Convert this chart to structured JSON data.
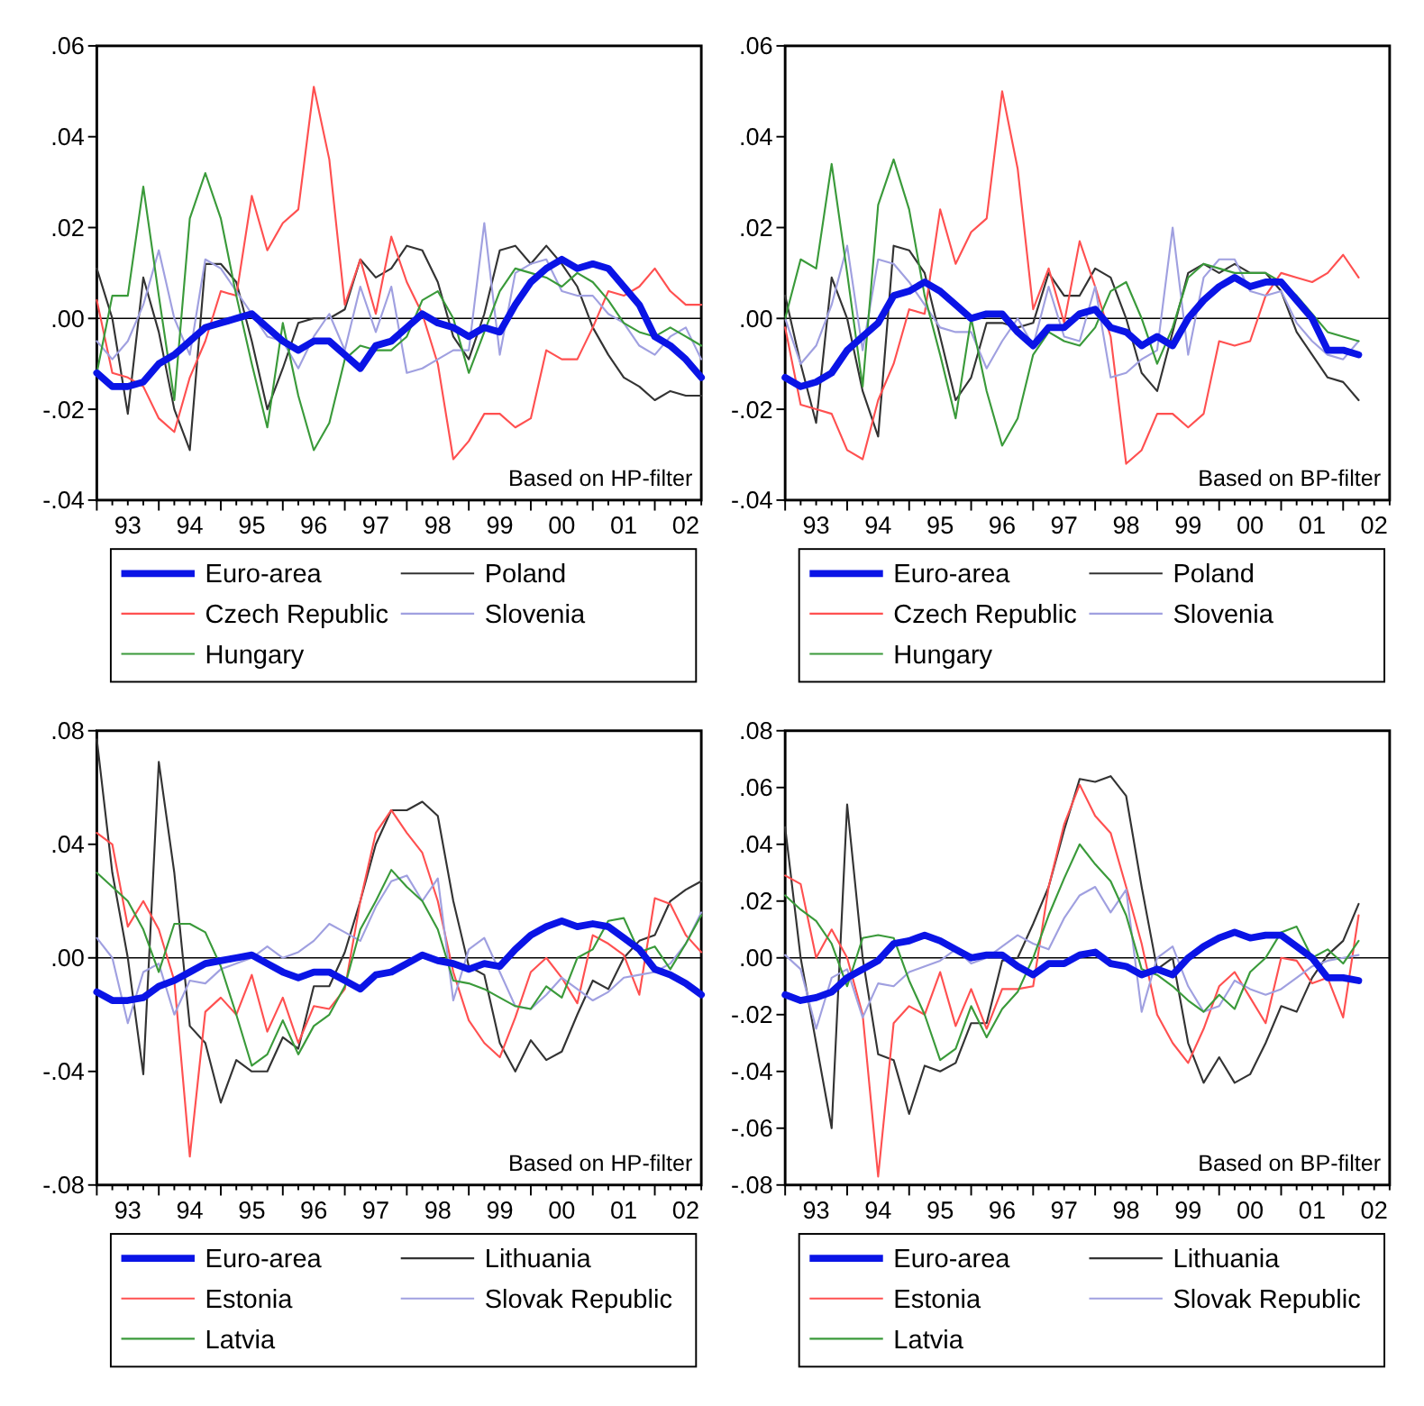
{
  "chart_data": [
    {
      "type": "line",
      "annotations": [
        "Based on HP-filter"
      ],
      "legend": "bottom",
      "categories": [
        null,
        null,
        "93",
        null,
        null,
        null,
        "94",
        null,
        null,
        null,
        "95",
        null,
        null,
        null,
        "96",
        null,
        null,
        null,
        "97",
        null,
        null,
        null,
        "98",
        null,
        null,
        null,
        "99",
        null,
        null,
        null,
        "00",
        null,
        null,
        null,
        "01",
        null,
        null,
        null,
        "02",
        null
      ],
      "ylim": [
        -0.04,
        0.06
      ],
      "yticks": [
        {
          "value": -0.04,
          "label": "-.04"
        },
        {
          "value": -0.02,
          "label": "-.02"
        },
        {
          "value": 0,
          "label": ".00"
        },
        {
          "value": 0.02,
          "label": ".02"
        },
        {
          "value": 0.04,
          "label": ".04"
        },
        {
          "value": 0.06,
          "label": ".06"
        }
      ],
      "ref_lines": [
        {
          "axis": "y",
          "value": 0,
          "color": "#000000"
        }
      ],
      "series": [
        {
          "name": "Euro-area",
          "color": "#0a14e6",
          "values": [
            -0.012,
            -0.015,
            -0.015,
            -0.014,
            -0.01,
            -0.008,
            -0.005,
            -0.002,
            -0.001,
            0.0,
            0.001,
            -0.002,
            -0.005,
            -0.007,
            -0.005,
            -0.005,
            -0.008,
            -0.011,
            -0.006,
            -0.005,
            -0.002,
            0.001,
            -0.001,
            -0.002,
            -0.004,
            -0.002,
            -0.003,
            0.003,
            0.008,
            0.011,
            0.013,
            0.011,
            0.012,
            0.011,
            0.007,
            0.003,
            -0.004,
            -0.006,
            -0.009,
            -0.013
          ]
        },
        {
          "name": "Poland",
          "color": "#333333",
          "values": [
            0.011,
            0.0,
            -0.021,
            0.009,
            -0.003,
            -0.02,
            -0.029,
            0.012,
            0.012,
            0.008,
            -0.005,
            -0.02,
            -0.011,
            -0.001,
            0.0,
            0.0,
            0.002,
            0.013,
            0.009,
            0.011,
            0.016,
            0.015,
            0.008,
            -0.004,
            -0.009,
            0.001,
            0.015,
            0.016,
            0.012,
            0.016,
            0.012,
            0.007,
            -0.002,
            -0.008,
            -0.013,
            -0.015,
            -0.018,
            -0.016,
            -0.017,
            -0.017
          ]
        },
        {
          "name": "Czech Republic",
          "color": "#ff5050",
          "values": [
            0.004,
            -0.012,
            -0.013,
            -0.015,
            -0.022,
            -0.025,
            -0.013,
            -0.005,
            0.006,
            0.005,
            0.027,
            0.015,
            0.021,
            0.024,
            0.051,
            0.035,
            0.003,
            0.013,
            0.001,
            0.018,
            0.008,
            0.001,
            -0.01,
            -0.031,
            -0.027,
            -0.021,
            -0.021,
            -0.024,
            -0.022,
            -0.007,
            -0.009,
            -0.009,
            -0.002,
            0.006,
            0.005,
            0.007,
            0.011,
            0.006,
            0.003,
            0.003
          ]
        },
        {
          "name": "Slovenia",
          "color": "#a0a0e0",
          "values": [
            -0.005,
            -0.009,
            -0.005,
            0.003,
            0.015,
            0.0,
            -0.008,
            0.013,
            0.011,
            0.006,
            0.001,
            -0.004,
            -0.005,
            -0.011,
            -0.004,
            0.001,
            -0.007,
            0.007,
            -0.003,
            0.007,
            -0.012,
            -0.011,
            -0.009,
            -0.007,
            -0.007,
            0.021,
            -0.008,
            0.01,
            0.012,
            0.013,
            0.006,
            0.005,
            0.005,
            0.001,
            -0.001,
            -0.006,
            -0.008,
            -0.004,
            -0.002,
            -0.009
          ]
        },
        {
          "name": "Hungary",
          "color": "#3a9a3a",
          "values": [
            -0.012,
            0.005,
            0.005,
            0.029,
            0.005,
            -0.018,
            0.022,
            0.032,
            0.022,
            0.005,
            -0.01,
            -0.024,
            -0.001,
            -0.017,
            -0.029,
            -0.023,
            -0.009,
            -0.006,
            -0.007,
            -0.007,
            -0.004,
            0.004,
            0.006,
            0.0,
            -0.012,
            -0.003,
            0.006,
            0.011,
            0.01,
            0.009,
            0.007,
            0.01,
            0.008,
            0.004,
            -0.001,
            -0.003,
            -0.004,
            -0.002,
            -0.004,
            -0.006
          ]
        }
      ]
    },
    {
      "type": "line",
      "annotations": [
        "Based on BP-filter"
      ],
      "legend": "bottom",
      "categories": [
        null,
        null,
        "93",
        null,
        null,
        null,
        "94",
        null,
        null,
        null,
        "95",
        null,
        null,
        null,
        "96",
        null,
        null,
        null,
        "97",
        null,
        null,
        null,
        "98",
        null,
        null,
        null,
        "99",
        null,
        null,
        null,
        "00",
        null,
        null,
        null,
        "01",
        null,
        null,
        null,
        "02",
        null
      ],
      "ylim": [
        -0.04,
        0.06
      ],
      "yticks": [
        {
          "value": -0.04,
          "label": "-.04"
        },
        {
          "value": -0.02,
          "label": "-.02"
        },
        {
          "value": 0,
          "label": ".00"
        },
        {
          "value": 0.02,
          "label": ".02"
        },
        {
          "value": 0.04,
          "label": ".04"
        },
        {
          "value": 0.06,
          "label": ".06"
        }
      ],
      "ref_lines": [
        {
          "axis": "y",
          "value": 0,
          "color": "#000000"
        }
      ],
      "series": [
        {
          "name": "Euro-area",
          "color": "#0a14e6",
          "values": [
            -0.013,
            -0.015,
            -0.014,
            -0.012,
            -0.007,
            -0.004,
            -0.001,
            0.005,
            0.006,
            0.008,
            0.006,
            0.003,
            0.0,
            0.001,
            0.001,
            -0.003,
            -0.006,
            -0.002,
            -0.002,
            0.001,
            0.002,
            -0.002,
            -0.003,
            -0.006,
            -0.004,
            -0.006,
            0.0,
            0.004,
            0.007,
            0.009,
            0.007,
            0.008,
            0.008,
            0.004,
            0.0,
            -0.007,
            -0.007,
            -0.008,
            null,
            null
          ]
        },
        {
          "name": "Poland",
          "color": "#333333",
          "values": [
            0.005,
            -0.01,
            -0.023,
            0.009,
            0.0,
            -0.016,
            -0.026,
            0.016,
            0.015,
            0.01,
            -0.004,
            -0.018,
            -0.013,
            -0.001,
            -0.001,
            -0.002,
            -0.001,
            0.01,
            0.005,
            0.005,
            0.011,
            0.009,
            0.0,
            -0.012,
            -0.016,
            -0.003,
            0.01,
            0.012,
            0.01,
            0.012,
            0.01,
            0.01,
            0.006,
            -0.003,
            -0.008,
            -0.013,
            -0.014,
            -0.018,
            null,
            null
          ]
        },
        {
          "name": "Czech Republic",
          "color": "#ff5050",
          "values": [
            -0.002,
            -0.019,
            -0.02,
            -0.021,
            -0.029,
            -0.031,
            -0.018,
            -0.01,
            0.002,
            0.001,
            0.024,
            0.012,
            0.019,
            0.022,
            0.05,
            0.033,
            0.002,
            0.011,
            -0.001,
            0.017,
            0.007,
            -0.004,
            -0.032,
            -0.029,
            -0.021,
            -0.021,
            -0.024,
            -0.021,
            -0.005,
            -0.006,
            -0.005,
            0.005,
            0.01,
            0.009,
            0.008,
            0.01,
            0.014,
            0.009,
            null,
            null
          ]
        },
        {
          "name": "Slovenia",
          "color": "#a0a0e0",
          "values": [
            0.0,
            -0.01,
            -0.006,
            0.003,
            0.016,
            -0.007,
            0.013,
            0.012,
            0.008,
            0.003,
            -0.002,
            -0.003,
            -0.003,
            -0.011,
            -0.005,
            0.0,
            -0.006,
            0.007,
            -0.004,
            -0.005,
            0.007,
            -0.013,
            -0.012,
            -0.009,
            -0.007,
            0.02,
            -0.008,
            0.009,
            0.013,
            0.013,
            0.006,
            0.005,
            0.006,
            -0.001,
            -0.005,
            -0.008,
            -0.009,
            -0.005,
            null,
            null
          ]
        },
        {
          "name": "Hungary",
          "color": "#3a9a3a",
          "values": [
            0.0,
            0.013,
            0.011,
            0.034,
            0.01,
            -0.015,
            0.025,
            0.035,
            0.024,
            0.005,
            -0.008,
            -0.022,
            0.0,
            -0.016,
            -0.028,
            -0.022,
            -0.008,
            -0.003,
            -0.005,
            -0.006,
            -0.002,
            0.006,
            0.008,
            0.0,
            -0.01,
            -0.002,
            0.009,
            0.012,
            0.011,
            0.01,
            0.01,
            0.01,
            0.008,
            0.005,
            0.001,
            -0.003,
            -0.004,
            -0.005,
            null,
            null
          ]
        }
      ]
    },
    {
      "type": "line",
      "annotations": [
        "Based on HP-filter"
      ],
      "legend": "bottom",
      "categories": [
        null,
        null,
        "93",
        null,
        null,
        null,
        "94",
        null,
        null,
        null,
        "95",
        null,
        null,
        null,
        "96",
        null,
        null,
        null,
        "97",
        null,
        null,
        null,
        "98",
        null,
        null,
        null,
        "99",
        null,
        null,
        null,
        "00",
        null,
        null,
        null,
        "01",
        null,
        null,
        null,
        "02",
        null
      ],
      "ylim": [
        -0.08,
        0.08
      ],
      "yticks": [
        {
          "value": -0.08,
          "label": "-.08"
        },
        {
          "value": -0.04,
          "label": "-.04"
        },
        {
          "value": 0,
          "label": ".00"
        },
        {
          "value": 0.04,
          "label": ".04"
        },
        {
          "value": 0.08,
          "label": ".08"
        }
      ],
      "ref_lines": [
        {
          "axis": "y",
          "value": 0,
          "color": "#000000"
        }
      ],
      "series": [
        {
          "name": "Euro-area",
          "color": "#0a14e6",
          "values": [
            -0.012,
            -0.015,
            -0.015,
            -0.014,
            -0.01,
            -0.008,
            -0.005,
            -0.002,
            -0.001,
            0.0,
            0.001,
            -0.002,
            -0.005,
            -0.007,
            -0.005,
            -0.005,
            -0.008,
            -0.011,
            -0.006,
            -0.005,
            -0.002,
            0.001,
            -0.001,
            -0.002,
            -0.004,
            -0.002,
            -0.003,
            0.003,
            0.008,
            0.011,
            0.013,
            0.011,
            0.012,
            0.011,
            0.007,
            0.003,
            -0.004,
            -0.006,
            -0.009,
            -0.013
          ]
        },
        {
          "name": "Lithuania",
          "color": "#333333",
          "values": [
            0.077,
            0.03,
            0.0,
            -0.041,
            0.069,
            0.03,
            -0.024,
            -0.03,
            -0.051,
            -0.036,
            -0.04,
            -0.04,
            -0.028,
            -0.032,
            -0.01,
            -0.01,
            0.002,
            0.02,
            0.04,
            0.052,
            0.052,
            0.055,
            0.05,
            0.02,
            -0.003,
            -0.006,
            -0.03,
            -0.04,
            -0.029,
            -0.036,
            -0.033,
            -0.02,
            -0.008,
            -0.011,
            0.0,
            0.006,
            0.008,
            0.02,
            0.024,
            0.027
          ]
        },
        {
          "name": "Estonia",
          "color": "#ff5050",
          "values": [
            0.044,
            0.04,
            0.011,
            0.02,
            0.01,
            -0.008,
            -0.07,
            -0.019,
            -0.014,
            -0.02,
            -0.006,
            -0.026,
            -0.014,
            -0.03,
            -0.017,
            -0.018,
            -0.011,
            0.02,
            0.044,
            0.052,
            0.044,
            0.037,
            0.02,
            -0.005,
            -0.022,
            -0.03,
            -0.035,
            -0.021,
            -0.005,
            0.0,
            -0.007,
            -0.016,
            0.008,
            0.005,
            0.001,
            -0.013,
            0.021,
            0.019,
            0.008,
            0.002
          ]
        },
        {
          "name": "Slovak Republic",
          "color": "#a0a0e0",
          "values": [
            0.007,
            0.0,
            -0.023,
            -0.005,
            -0.002,
            -0.02,
            -0.008,
            -0.009,
            -0.004,
            -0.002,
            0.0,
            0.004,
            0.0,
            0.002,
            0.006,
            0.012,
            0.009,
            0.006,
            0.018,
            0.027,
            0.029,
            0.02,
            0.028,
            -0.015,
            0.003,
            0.007,
            -0.005,
            -0.017,
            -0.018,
            -0.013,
            -0.007,
            -0.011,
            -0.015,
            -0.012,
            -0.007,
            -0.006,
            -0.005,
            -0.002,
            0.005,
            0.016
          ]
        },
        {
          "name": "Latvia",
          "color": "#3a9a3a",
          "values": [
            0.03,
            0.025,
            0.02,
            0.01,
            -0.005,
            0.012,
            0.012,
            0.009,
            -0.003,
            -0.02,
            -0.038,
            -0.034,
            -0.022,
            -0.034,
            -0.024,
            -0.02,
            -0.01,
            0.01,
            0.02,
            0.031,
            0.025,
            0.02,
            0.01,
            -0.008,
            -0.009,
            -0.011,
            -0.014,
            -0.017,
            -0.018,
            -0.01,
            -0.014,
            0.0,
            0.003,
            0.013,
            0.014,
            0.002,
            0.004,
            -0.004,
            0.005,
            0.015
          ]
        }
      ]
    },
    {
      "type": "line",
      "annotations": [
        "Based on BP-filter"
      ],
      "legend": "bottom",
      "categories": [
        null,
        null,
        "93",
        null,
        null,
        null,
        "94",
        null,
        null,
        null,
        "95",
        null,
        null,
        null,
        "96",
        null,
        null,
        null,
        "97",
        null,
        null,
        null,
        "98",
        null,
        null,
        null,
        "99",
        null,
        null,
        null,
        "00",
        null,
        null,
        null,
        "01",
        null,
        null,
        null,
        "02",
        null
      ],
      "ylim": [
        -0.08,
        0.08
      ],
      "yticks": [
        {
          "value": -0.08,
          "label": "-.08"
        },
        {
          "value": -0.06,
          "label": "-.06"
        },
        {
          "value": -0.04,
          "label": "-.04"
        },
        {
          "value": -0.02,
          "label": "-.02"
        },
        {
          "value": 0,
          "label": ".00"
        },
        {
          "value": 0.02,
          "label": ".02"
        },
        {
          "value": 0.04,
          "label": ".04"
        },
        {
          "value": 0.06,
          "label": ".06"
        },
        {
          "value": 0.08,
          "label": ".08"
        }
      ],
      "ref_lines": [
        {
          "axis": "y",
          "value": 0,
          "color": "#000000"
        }
      ],
      "series": [
        {
          "name": "Euro-area",
          "color": "#0a14e6",
          "values": [
            -0.013,
            -0.015,
            -0.014,
            -0.012,
            -0.007,
            -0.004,
            -0.001,
            0.005,
            0.006,
            0.008,
            0.006,
            0.003,
            0.0,
            0.001,
            0.001,
            -0.003,
            -0.006,
            -0.002,
            -0.002,
            0.001,
            0.002,
            -0.002,
            -0.003,
            -0.006,
            -0.004,
            -0.006,
            0.0,
            0.004,
            0.007,
            0.009,
            0.007,
            0.008,
            0.008,
            0.004,
            0.0,
            -0.007,
            -0.007,
            -0.008,
            null,
            null
          ]
        },
        {
          "name": "Lithuania",
          "color": "#333333",
          "values": [
            0.046,
            0.0,
            -0.03,
            -0.06,
            0.054,
            0.0,
            -0.034,
            -0.036,
            -0.055,
            -0.038,
            -0.04,
            -0.037,
            -0.023,
            -0.023,
            -0.001,
            0.0,
            0.012,
            0.025,
            0.045,
            0.063,
            0.062,
            0.064,
            0.057,
            0.025,
            -0.004,
            0.0,
            -0.03,
            -0.044,
            -0.035,
            -0.044,
            -0.041,
            -0.03,
            -0.017,
            -0.019,
            -0.007,
            0.001,
            0.006,
            0.019,
            null,
            null
          ]
        },
        {
          "name": "Estonia",
          "color": "#ff5050",
          "values": [
            0.029,
            0.026,
            0.0,
            0.01,
            0.0,
            -0.02,
            -0.077,
            -0.023,
            -0.017,
            -0.02,
            -0.005,
            -0.024,
            -0.011,
            -0.025,
            -0.011,
            -0.011,
            -0.01,
            0.025,
            0.047,
            0.061,
            0.05,
            0.044,
            0.025,
            0.005,
            -0.02,
            -0.03,
            -0.037,
            -0.025,
            -0.01,
            -0.005,
            -0.014,
            -0.023,
            0.0,
            -0.001,
            -0.009,
            -0.007,
            -0.021,
            0.015,
            null,
            null
          ]
        },
        {
          "name": "Slovak Republic",
          "color": "#a0a0e0",
          "values": [
            0.001,
            -0.004,
            -0.025,
            -0.007,
            -0.004,
            -0.021,
            -0.009,
            -0.01,
            -0.005,
            -0.003,
            -0.001,
            0.003,
            -0.002,
            0.0,
            0.004,
            0.008,
            0.005,
            0.003,
            0.014,
            0.022,
            0.025,
            0.016,
            0.024,
            -0.019,
            0.0,
            0.004,
            -0.01,
            -0.019,
            -0.017,
            -0.008,
            -0.011,
            -0.013,
            -0.011,
            -0.007,
            -0.003,
            -0.001,
            0.0,
            0.001,
            null,
            null
          ]
        },
        {
          "name": "Latvia",
          "color": "#3a9a3a",
          "values": [
            0.022,
            0.017,
            0.013,
            0.005,
            -0.01,
            0.007,
            0.008,
            0.007,
            -0.008,
            -0.02,
            -0.036,
            -0.032,
            -0.017,
            -0.028,
            -0.018,
            -0.012,
            0.0,
            0.015,
            0.028,
            0.04,
            0.033,
            0.027,
            0.015,
            -0.004,
            -0.006,
            -0.01,
            -0.015,
            -0.019,
            -0.013,
            -0.018,
            -0.005,
            0.0,
            0.009,
            0.011,
            0.0,
            0.003,
            -0.002,
            0.006,
            null,
            null
          ]
        }
      ]
    }
  ]
}
